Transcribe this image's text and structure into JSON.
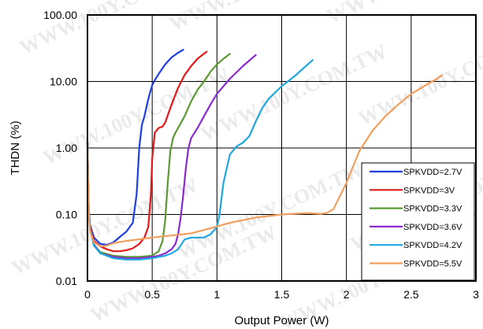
{
  "chart_data": {
    "type": "line",
    "xlabel": "Output Power (W)",
    "ylabel": "THDN (%)",
    "xlim": [
      0,
      3
    ],
    "ylim": [
      0.01,
      100
    ],
    "yscale": "log",
    "grid": true,
    "legend_position": "bottom-right",
    "x_ticks": [
      "0",
      "0.5",
      "1",
      "1.5",
      "2",
      "2.5",
      "3"
    ],
    "y_ticks": [
      "0.01",
      "0.10",
      "1.00",
      "10.00",
      "100.00"
    ],
    "watermark": "WWW.100Y.COM.TW",
    "series": [
      {
        "name": "SPKVDD=2.7V",
        "color": "#1f3fe0",
        "x": [
          0,
          0.01,
          0.02,
          0.05,
          0.1,
          0.15,
          0.2,
          0.25,
          0.3,
          0.35,
          0.38,
          0.4,
          0.42,
          0.44,
          0.46,
          0.48,
          0.5,
          0.52,
          0.55,
          0.6,
          0.65,
          0.7,
          0.74
        ],
        "y": [
          1.2,
          0.12,
          0.07,
          0.045,
          0.036,
          0.035,
          0.038,
          0.046,
          0.055,
          0.075,
          0.2,
          1.0,
          2.2,
          3.0,
          4.5,
          6.5,
          8.8,
          10.5,
          13,
          18,
          23,
          27,
          30
        ]
      },
      {
        "name": "SPKVDD=3V",
        "color": "#e01a1a",
        "x": [
          0,
          0.01,
          0.02,
          0.05,
          0.1,
          0.15,
          0.2,
          0.25,
          0.3,
          0.35,
          0.4,
          0.44,
          0.47,
          0.49,
          0.5,
          0.52,
          0.55,
          0.58,
          0.6,
          0.65,
          0.7,
          0.75,
          0.8,
          0.85,
          0.92
        ],
        "y": [
          1.2,
          0.12,
          0.065,
          0.04,
          0.033,
          0.03,
          0.028,
          0.028,
          0.029,
          0.031,
          0.036,
          0.045,
          0.065,
          0.2,
          0.7,
          1.7,
          2.0,
          2.1,
          2.4,
          4.5,
          8.0,
          12.5,
          17,
          22,
          28
        ]
      },
      {
        "name": "SPKVDD=3.3V",
        "color": "#5a9a32",
        "x": [
          0,
          0.01,
          0.02,
          0.05,
          0.1,
          0.2,
          0.3,
          0.4,
          0.5,
          0.55,
          0.58,
          0.6,
          0.62,
          0.64,
          0.66,
          0.68,
          0.7,
          0.75,
          0.8,
          0.85,
          0.9,
          0.95,
          1.0,
          1.05,
          1.1
        ],
        "y": [
          1.2,
          0.12,
          0.06,
          0.035,
          0.027,
          0.024,
          0.023,
          0.023,
          0.024,
          0.028,
          0.04,
          0.08,
          0.3,
          0.9,
          1.4,
          1.7,
          2.0,
          3.0,
          5.0,
          7.5,
          10,
          14,
          18,
          22,
          26
        ]
      },
      {
        "name": "SPKVDD=3.6V",
        "color": "#8a2ad0",
        "x": [
          0,
          0.01,
          0.02,
          0.05,
          0.1,
          0.2,
          0.3,
          0.4,
          0.5,
          0.55,
          0.6,
          0.65,
          0.68,
          0.7,
          0.72,
          0.74,
          0.76,
          0.78,
          0.8,
          0.85,
          0.9,
          0.95,
          1.0,
          1.1,
          1.2,
          1.3
        ],
        "y": [
          1.2,
          0.12,
          0.06,
          0.035,
          0.026,
          0.023,
          0.022,
          0.022,
          0.023,
          0.024,
          0.026,
          0.03,
          0.036,
          0.05,
          0.09,
          0.2,
          0.5,
          1.0,
          1.4,
          2.0,
          3.0,
          4.5,
          6.5,
          11,
          17,
          25
        ]
      },
      {
        "name": "SPKVDD=4.2V",
        "color": "#1fa8e0",
        "x": [
          0,
          0.01,
          0.02,
          0.05,
          0.1,
          0.2,
          0.3,
          0.4,
          0.5,
          0.55,
          0.6,
          0.65,
          0.7,
          0.75,
          0.8,
          0.85,
          0.9,
          0.95,
          1.0,
          1.02,
          1.05,
          1.1,
          1.15,
          1.2,
          1.25,
          1.3,
          1.35,
          1.4,
          1.5,
          1.6,
          1.7,
          1.74
        ],
        "y": [
          1.2,
          0.12,
          0.06,
          0.034,
          0.026,
          0.022,
          0.021,
          0.021,
          0.022,
          0.023,
          0.024,
          0.026,
          0.03,
          0.042,
          0.045,
          0.045,
          0.045,
          0.05,
          0.065,
          0.1,
          0.3,
          0.8,
          1.05,
          1.2,
          1.5,
          2.5,
          4.0,
          5.5,
          8.5,
          12,
          18,
          21
        ]
      },
      {
        "name": "SPKVDD=5.5V",
        "color": "#f0a060",
        "x": [
          0,
          0.01,
          0.02,
          0.05,
          0.1,
          0.15,
          0.2,
          0.3,
          0.5,
          0.8,
          0.95,
          1.1,
          1.3,
          1.5,
          1.7,
          1.8,
          1.85,
          1.9,
          2.0,
          2.1,
          2.2,
          2.3,
          2.4,
          2.5,
          2.6,
          2.7,
          2.74
        ],
        "y": [
          1.2,
          0.1,
          0.055,
          0.038,
          0.033,
          0.034,
          0.037,
          0.04,
          0.045,
          0.052,
          0.062,
          0.075,
          0.09,
          0.1,
          0.105,
          0.102,
          0.106,
          0.12,
          0.3,
          0.9,
          1.8,
          3.0,
          4.5,
          6.5,
          8.5,
          11,
          12.5
        ]
      }
    ]
  }
}
